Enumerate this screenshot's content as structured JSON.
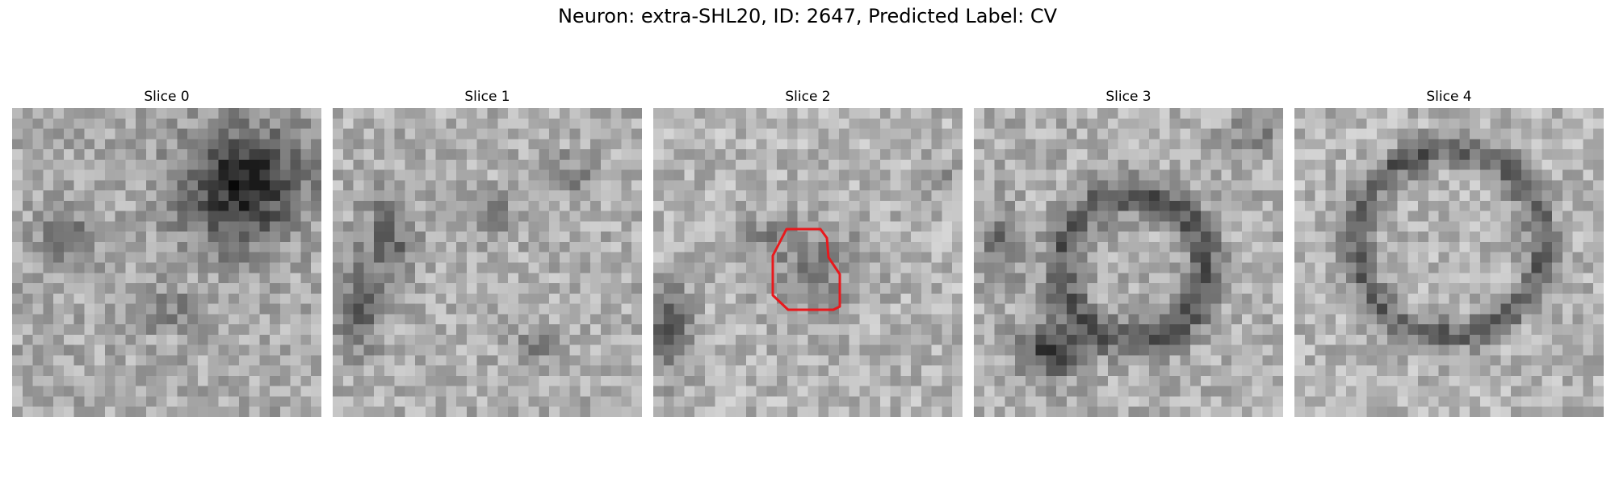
{
  "figure": {
    "title": "Neuron: extra-SHL20, ID: 2647, Predicted Label: CV"
  },
  "panels": [
    {
      "label": "Slice 0",
      "variant": "slice0",
      "has_contour": false
    },
    {
      "label": "Slice 1",
      "variant": "slice1",
      "has_contour": false
    },
    {
      "label": "Slice 2",
      "variant": "slice2",
      "has_contour": true
    },
    {
      "label": "Slice 3",
      "variant": "slice3",
      "has_contour": false
    },
    {
      "label": "Slice 4",
      "variant": "slice4",
      "has_contour": false
    }
  ],
  "contour_color": "#e8191d",
  "colormap": "grayscale"
}
